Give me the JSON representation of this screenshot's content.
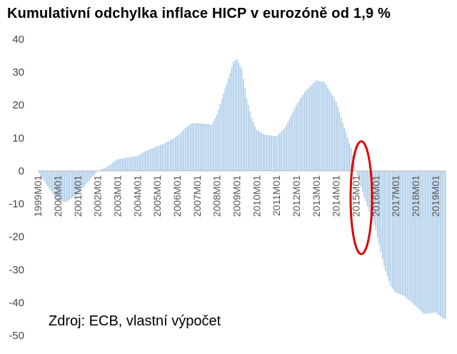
{
  "chart_data": {
    "type": "bar",
    "title": "Kumulativní odchylka inflace HICP v eurozóně od 1,9 %",
    "source_note": "Zdroj: ECB,  vlastní výpočet",
    "xlabel": "",
    "ylabel": "",
    "ylim": [
      -50,
      40
    ],
    "y_ticks": [
      40,
      30,
      20,
      10,
      0,
      -10,
      -20,
      -30,
      -40,
      -50
    ],
    "x_tick_labels": [
      "1999M01",
      "2000M01",
      "2001M01",
      "2002M01",
      "2003M01",
      "2004M01",
      "2005M01",
      "2006M01",
      "2007M01",
      "2008M01",
      "2009M01",
      "2010M01",
      "2011M01",
      "2012M01",
      "2013M01",
      "2014M01",
      "2015M01",
      "2016M01",
      "2017M01",
      "2018M01",
      "2019M01"
    ],
    "series_color": "#9dc3e6",
    "highlight": {
      "shape": "ellipse",
      "color": "#e00000",
      "around": "2015M01"
    },
    "grid": false,
    "legend": "none",
    "x_anchors": [
      [
        "1999M01",
        0
      ],
      [
        "1999M06",
        -4
      ],
      [
        "2000M01",
        -9
      ],
      [
        "2000M06",
        -9.5
      ],
      [
        "2001M01",
        -7
      ],
      [
        "2001M06",
        -4
      ],
      [
        "2002M01",
        0
      ],
      [
        "2002M06",
        1
      ],
      [
        "2003M01",
        3.5
      ],
      [
        "2003M06",
        4
      ],
      [
        "2004M01",
        4.5
      ],
      [
        "2004M06",
        6
      ],
      [
        "2005M01",
        7.5
      ],
      [
        "2005M06",
        8.5
      ],
      [
        "2006M01",
        10.5
      ],
      [
        "2006M06",
        13
      ],
      [
        "2006M10",
        14.5
      ],
      [
        "2007M01",
        14.5
      ],
      [
        "2007M06",
        14.3
      ],
      [
        "2007M10",
        14
      ],
      [
        "2008M01",
        17
      ],
      [
        "2008M06",
        25
      ],
      [
        "2008M11",
        33
      ],
      [
        "2009M01",
        34
      ],
      [
        "2009M04",
        31
      ],
      [
        "2009M07",
        22
      ],
      [
        "2009M10",
        16
      ],
      [
        "2010M01",
        12.5
      ],
      [
        "2010M06",
        11
      ],
      [
        "2011M01",
        10.5
      ],
      [
        "2011M06",
        13
      ],
      [
        "2012M01",
        20
      ],
      [
        "2012M06",
        24
      ],
      [
        "2013M01",
        27.5
      ],
      [
        "2013M06",
        27
      ],
      [
        "2014M01",
        21
      ],
      [
        "2014M06",
        13
      ],
      [
        "2014M10",
        7
      ],
      [
        "2015M01",
        0
      ],
      [
        "2015M06",
        -8
      ],
      [
        "2016M01",
        -18
      ],
      [
        "2016M06",
        -29
      ],
      [
        "2016M10",
        -35
      ],
      [
        "2017M01",
        -37
      ],
      [
        "2017M06",
        -38
      ],
      [
        "2018M01",
        -41
      ],
      [
        "2018M06",
        -43.5
      ],
      [
        "2019M01",
        -43
      ],
      [
        "2019M06",
        -45
      ]
    ]
  }
}
